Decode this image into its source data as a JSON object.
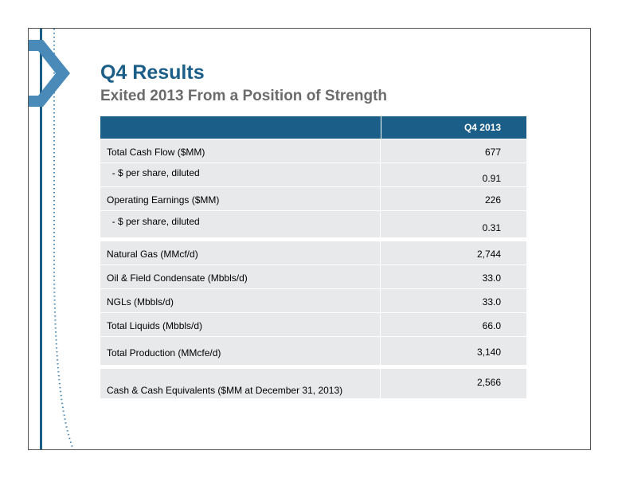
{
  "slide": {
    "title": "Q4 Results",
    "subtitle": "Exited 2013 From a Position of Strength"
  },
  "table": {
    "column_header": "Q4 2013",
    "groups": [
      [
        {
          "label": "Total Cash Flow ($MM)",
          "value": "677"
        },
        {
          "label": "  - $ per share, diluted",
          "value": "0.91"
        },
        {
          "label": "Operating Earnings ($MM)",
          "value": "226"
        },
        {
          "label": "  - $ per share, diluted",
          "value": "0.31"
        }
      ],
      [
        {
          "label": "Natural Gas (MMcf/d)",
          "value": "2,744"
        },
        {
          "label": "Oil & Field Condensate (Mbbls/d)",
          "value": "33.0"
        },
        {
          "label": "NGLs (Mbbls/d)",
          "value": "33.0"
        },
        {
          "label": "Total Liquids (Mbbls/d)",
          "value": "66.0"
        },
        {
          "label": "Total Production (MMcfe/d)",
          "value": "3,140"
        }
      ],
      [
        {
          "label": "Cash & Cash Equivalents ($MM at December 31, 2013)",
          "value": "2,566"
        }
      ]
    ]
  },
  "colors": {
    "brand_blue": "#1b5e87",
    "chevron_blue": "#4a8ab8",
    "row_bg": "#e8e9eb"
  }
}
